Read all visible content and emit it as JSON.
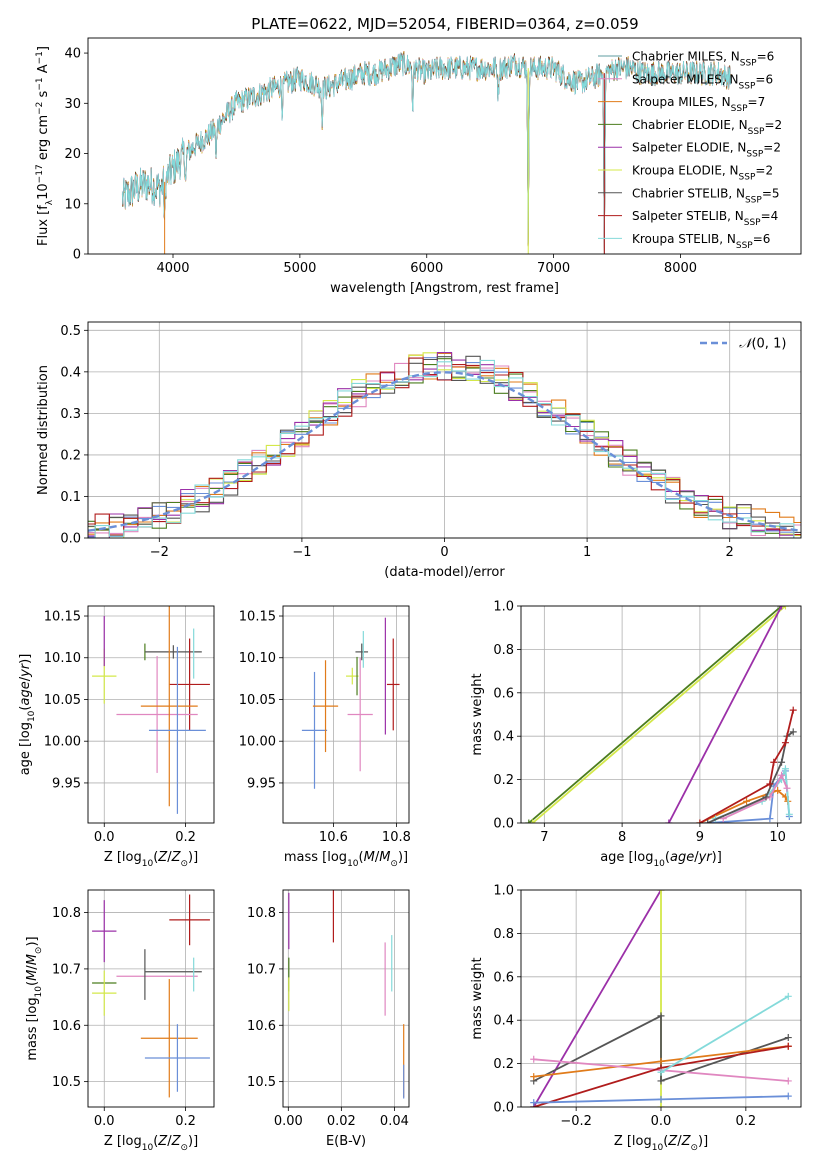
{
  "figure_title": "PLATE=0622, MJD=52054, FIBERID=0364, z=0.059",
  "colors": {
    "Chabrier MILES": "#5f9ea0",
    "Salpeter MILES": "#e087c0",
    "Kroupa MILES": "#e07b1a",
    "Chabrier ELODIE": "#4b7d1e",
    "Salpeter ELODIE": "#9b30a8",
    "Kroupa ELODIE": "#d4e84a",
    "Chabrier STELIB": "#555555",
    "Salpeter STELIB": "#b01c1c",
    "Kroupa STELIB": "#84dada",
    "Blue": "#6a8fd8"
  },
  "chart_data": [
    {
      "id": "spectrum",
      "type": "line",
      "xlabel": "wavelength [Angstrom, rest frame]",
      "ylabel": "Flux [f_λ 10^-17 erg cm^-2 s^-1 A^-1]",
      "xlim": [
        3330,
        8950
      ],
      "ylim": [
        0,
        43
      ],
      "xticks": [
        4000,
        5000,
        6000,
        7000,
        8000
      ],
      "yticks": [
        0,
        10,
        20,
        30,
        40
      ],
      "grid": false,
      "legend_position": "right",
      "legend": [
        "Chabrier MILES, N_SSP=6",
        "Salpeter MILES, N_SSP=6",
        "Kroupa MILES, N_SSP=7",
        "Chabrier ELODIE, N_SSP=2",
        "Salpeter ELODIE, N_SSP=2",
        "Kroupa ELODIE, N_SSP=2",
        "Chabrier STELIB, N_SSP=5",
        "Salpeter STELIB, N_SSP=4",
        "Kroupa STELIB, N_SSP=6"
      ],
      "continuum": [
        [
          3600,
          11
        ],
        [
          3700,
          13
        ],
        [
          3800,
          14
        ],
        [
          3900,
          13
        ],
        [
          4000,
          17
        ],
        [
          4100,
          20
        ],
        [
          4200,
          22
        ],
        [
          4300,
          24
        ],
        [
          4400,
          27
        ],
        [
          4500,
          30
        ],
        [
          4600,
          31
        ],
        [
          4700,
          32
        ],
        [
          4800,
          33
        ],
        [
          4900,
          34
        ],
        [
          5000,
          35
        ],
        [
          5100,
          34
        ],
        [
          5200,
          33
        ],
        [
          5300,
          34
        ],
        [
          5400,
          35
        ],
        [
          5500,
          36
        ],
        [
          5600,
          36
        ],
        [
          5700,
          37
        ],
        [
          5800,
          38
        ],
        [
          5900,
          37
        ],
        [
          6000,
          36
        ],
        [
          6100,
          37
        ],
        [
          6200,
          37
        ],
        [
          6300,
          37
        ],
        [
          6400,
          37
        ],
        [
          6500,
          37
        ],
        [
          6600,
          37
        ],
        [
          6700,
          38
        ],
        [
          6800,
          37
        ],
        [
          6900,
          37
        ],
        [
          7000,
          37
        ],
        [
          7100,
          35
        ],
        [
          7200,
          34
        ],
        [
          7300,
          35
        ],
        [
          7400,
          36
        ],
        [
          7500,
          37
        ],
        [
          7600,
          37
        ],
        [
          7700,
          36
        ],
        [
          7800,
          36
        ],
        [
          7900,
          36
        ],
        [
          8000,
          36
        ],
        [
          8100,
          36
        ],
        [
          8200,
          36
        ],
        [
          8300,
          36
        ],
        [
          8400,
          35
        ]
      ],
      "absorption_lines": [
        [
          3934,
          9
        ],
        [
          4101,
          6
        ],
        [
          4340,
          6
        ],
        [
          4861,
          5
        ],
        [
          5175,
          7
        ],
        [
          5890,
          9
        ],
        [
          6563,
          6
        ],
        [
          6800,
          37
        ],
        [
          7400,
          36
        ]
      ]
    },
    {
      "id": "residuals",
      "type": "line",
      "xlabel": "(data-model)/error",
      "ylabel": "Normed distribution",
      "xlim": [
        -2.5,
        2.5
      ],
      "ylim": [
        0,
        0.52
      ],
      "xticks": [
        -2,
        -1,
        0,
        1,
        2
      ],
      "yticks": [
        0.0,
        0.1,
        0.2,
        0.3,
        0.4,
        0.5
      ],
      "grid": true,
      "legend_position": "upper-right",
      "legend": [
        "𝒩(0, 1)"
      ],
      "bin_width": 0.1
    },
    {
      "id": "age_vs_Z",
      "type": "scatter",
      "xlabel": "Z [log10(Z/Z⊙)]",
      "ylabel": "age  [log10(age/yr)]",
      "xlim": [
        -0.04,
        0.27
      ],
      "ylim": [
        9.902,
        10.162
      ],
      "xticks": [
        0.0,
        0.2
      ],
      "yticks": [
        9.95,
        10.0,
        10.05,
        10.1,
        10.15
      ],
      "grid": true,
      "points": [
        {
          "x": 0.0,
          "y": 10.078,
          "xe": 0.03,
          "ye": 0.033,
          "c": "Kroupa ELODIE"
        },
        {
          "x": 0.0,
          "y": 10.12,
          "xe": 0.0,
          "ye": 0.03,
          "c": "Salpeter ELODIE"
        },
        {
          "x": 0.1,
          "y": 10.107,
          "xe": 0.0,
          "ye": 0.01,
          "c": "Chabrier ELODIE"
        },
        {
          "x": 0.17,
          "y": 10.107,
          "xe": 0.07,
          "ye": 0.008,
          "c": "Chabrier STELIB"
        },
        {
          "x": 0.22,
          "y": 10.105,
          "xe": 0.0,
          "ye": 0.03,
          "c": "Kroupa STELIB"
        },
        {
          "x": 0.21,
          "y": 10.068,
          "xe": 0.05,
          "ye": 0.055,
          "c": "Salpeter STELIB"
        },
        {
          "x": 0.13,
          "y": 10.032,
          "xe": 0.1,
          "ye": 0.07,
          "c": "Salpeter MILES"
        },
        {
          "x": 0.16,
          "y": 10.042,
          "xe": 0.07,
          "ye": 0.12,
          "c": "Kroupa MILES"
        },
        {
          "x": 0.18,
          "y": 10.013,
          "xe": 0.07,
          "ye": 0.1,
          "c": "Blue"
        }
      ]
    },
    {
      "id": "age_vs_mass",
      "type": "scatter",
      "xlabel": "mass [log10(M/M⊙)]",
      "ylabel": "",
      "xlim": [
        10.44,
        10.84
      ],
      "ylim": [
        9.902,
        10.162
      ],
      "xticks": [
        10.6,
        10.8
      ],
      "yticks": [
        9.95,
        10.0,
        10.05,
        10.1,
        10.15
      ],
      "grid": true,
      "points": [
        {
          "x": 10.54,
          "y": 10.013,
          "xe": 0.04,
          "ye": 0.07,
          "c": "Blue"
        },
        {
          "x": 10.575,
          "y": 10.042,
          "xe": 0.04,
          "ye": 0.055,
          "c": "Kroupa MILES"
        },
        {
          "x": 10.66,
          "y": 10.078,
          "xe": 0.02,
          "ye": 0.01,
          "c": "Kroupa ELODIE"
        },
        {
          "x": 10.675,
          "y": 10.078,
          "xe": 0.0,
          "ye": 0.023,
          "c": "Chabrier ELODIE"
        },
        {
          "x": 10.685,
          "y": 10.032,
          "xe": 0.04,
          "ye": 0.068,
          "c": "Salpeter MILES"
        },
        {
          "x": 10.69,
          "y": 10.107,
          "xe": 0.02,
          "ye": 0.01,
          "c": "Chabrier STELIB"
        },
        {
          "x": 10.695,
          "y": 10.11,
          "xe": 0.0,
          "ye": 0.022,
          "c": "Kroupa STELIB"
        },
        {
          "x": 10.765,
          "y": 10.078,
          "xe": 0.0,
          "ye": 0.07,
          "c": "Salpeter ELODIE"
        },
        {
          "x": 10.79,
          "y": 10.068,
          "xe": 0.02,
          "ye": 0.055,
          "c": "Salpeter STELIB"
        }
      ]
    },
    {
      "id": "mass_weight_vs_age",
      "type": "line",
      "xlabel": "age  [log10(age/yr)]",
      "ylabel": "mass weight",
      "xlim": [
        6.7,
        10.3
      ],
      "ylim": [
        0,
        1.0
      ],
      "xticks": [
        7,
        8,
        9,
        10
      ],
      "yticks": [
        0.0,
        0.2,
        0.4,
        0.6,
        0.8,
        1.0
      ],
      "grid": true,
      "series": [
        {
          "c": "Chabrier ELODIE",
          "x": [
            6.8,
            10.05
          ],
          "y": [
            0.0,
            1.0
          ]
        },
        {
          "c": "Kroupa ELODIE",
          "x": [
            6.85,
            10.1
          ],
          "y": [
            0.0,
            1.0
          ]
        },
        {
          "c": "Salpeter ELODIE",
          "x": [
            8.6,
            10.05
          ],
          "y": [
            0.0,
            1.0
          ]
        },
        {
          "c": "Blue",
          "x": [
            9.1,
            9.9,
            9.95,
            10.1,
            10.15
          ],
          "y": [
            0.0,
            0.02,
            0.17,
            0.24,
            0.03
          ]
        },
        {
          "c": "Kroupa MILES",
          "x": [
            9.0,
            9.6,
            10.0,
            10.1,
            10.13
          ],
          "y": [
            0.0,
            0.1,
            0.15,
            0.12,
            0.1
          ]
        },
        {
          "c": "Kroupa STELIB",
          "x": [
            9.2,
            9.8,
            10.05,
            10.1,
            10.15
          ],
          "y": [
            0.02,
            0.1,
            0.2,
            0.25,
            0.04
          ]
        },
        {
          "c": "Salpeter MILES",
          "x": [
            9.3,
            9.9,
            10.05,
            10.12
          ],
          "y": [
            0.02,
            0.12,
            0.22,
            0.16
          ]
        },
        {
          "c": "Chabrier STELIB",
          "x": [
            9.1,
            9.85,
            10.05,
            10.12,
            10.2
          ],
          "y": [
            0.0,
            0.12,
            0.28,
            0.4,
            0.42
          ]
        },
        {
          "c": "Salpeter STELIB",
          "x": [
            9.0,
            9.9,
            9.95,
            10.1,
            10.2
          ],
          "y": [
            0.0,
            0.18,
            0.28,
            0.37,
            0.52
          ]
        }
      ]
    },
    {
      "id": "mass_vs_Z",
      "type": "scatter",
      "xlabel": "Z [log10(Z/Z⊙)]",
      "ylabel": "mass [log10(M/M⊙)]",
      "xlim": [
        -0.04,
        0.27
      ],
      "ylim": [
        10.455,
        10.84
      ],
      "xticks": [
        0.0,
        0.2
      ],
      "yticks": [
        10.5,
        10.6,
        10.7,
        10.8
      ],
      "grid": true,
      "points": [
        {
          "x": 0.0,
          "y": 10.767,
          "xe": 0.03,
          "ye": 0.055,
          "c": "Salpeter ELODIE"
        },
        {
          "x": 0.0,
          "y": 10.675,
          "xe": 0.03,
          "ye": 0.0,
          "c": "Chabrier ELODIE"
        },
        {
          "x": 0.0,
          "y": 10.657,
          "xe": 0.03,
          "ye": 0.04,
          "c": "Kroupa ELODIE"
        },
        {
          "x": 0.13,
          "y": 10.687,
          "xe": 0.1,
          "ye": 0.0,
          "c": "Salpeter MILES"
        },
        {
          "x": 0.17,
          "y": 10.695,
          "xe": 0.07,
          "ye": 0.0,
          "c": "Chabrier STELIB"
        },
        {
          "x": 0.1,
          "y": 10.69,
          "xe": 0.0,
          "ye": 0.045,
          "c": "Chabrier STELIB"
        },
        {
          "x": 0.22,
          "y": 10.69,
          "xe": 0.0,
          "ye": 0.03,
          "c": "Kroupa STELIB"
        },
        {
          "x": 0.21,
          "y": 10.787,
          "xe": 0.05,
          "ye": 0.045,
          "c": "Salpeter STELIB"
        },
        {
          "x": 0.16,
          "y": 10.577,
          "xe": 0.07,
          "ye": 0.105,
          "c": "Kroupa MILES"
        },
        {
          "x": 0.18,
          "y": 10.542,
          "xe": 0.08,
          "ye": 0.06,
          "c": "Blue"
        }
      ]
    },
    {
      "id": "mass_vs_EBV",
      "type": "scatter",
      "xlabel": "E(B-V)",
      "ylabel": "",
      "xlim": [
        -0.002,
        0.0455
      ],
      "ylim": [
        10.455,
        10.84
      ],
      "xticks": [
        0.0,
        0.02,
        0.04
      ],
      "yticks": [
        10.5,
        10.6,
        10.7,
        10.8
      ],
      "grid": true,
      "points": [
        {
          "x": 0.0002,
          "y": 10.785,
          "xe": 0.0,
          "ye": 0.05,
          "c": "Salpeter ELODIE"
        },
        {
          "x": 0.0002,
          "y": 10.69,
          "xe": 0.0,
          "ye": 0.03,
          "c": "Chabrier ELODIE"
        },
        {
          "x": 0.0002,
          "y": 10.655,
          "xe": 0.0,
          "ye": 0.03,
          "c": "Kroupa ELODIE"
        },
        {
          "x": 0.017,
          "y": 10.797,
          "xe": 0.0,
          "ye": 0.05,
          "c": "Salpeter STELIB"
        },
        {
          "x": 0.0365,
          "y": 10.682,
          "xe": 0.0,
          "ye": 0.065,
          "c": "Salpeter MILES"
        },
        {
          "x": 0.039,
          "y": 10.71,
          "xe": 0.0,
          "ye": 0.05,
          "c": "Kroupa STELIB"
        },
        {
          "x": 0.0435,
          "y": 10.537,
          "xe": 0.0,
          "ye": 0.065,
          "c": "Kroupa MILES"
        },
        {
          "x": 0.0435,
          "y": 10.5,
          "xe": 0.0,
          "ye": 0.03,
          "c": "Blue"
        }
      ]
    },
    {
      "id": "mass_weight_vs_Z",
      "type": "line",
      "xlabel": "Z [log10(Z/Z⊙)]",
      "ylabel": "mass weight",
      "xlim": [
        -0.33,
        0.33
      ],
      "ylim": [
        0,
        1.0
      ],
      "xticks": [
        -0.2,
        0.0,
        0.2
      ],
      "yticks": [
        0.0,
        0.2,
        0.4,
        0.6,
        0.8,
        1.0
      ],
      "grid": true,
      "series": [
        {
          "c": "Salpeter ELODIE",
          "x": [
            -0.3,
            0.0
          ],
          "y": [
            0.0,
            1.0
          ]
        },
        {
          "c": "Kroupa ELODIE",
          "x": [
            0.0,
            0.0
          ],
          "y": [
            0.0,
            1.0
          ]
        },
        {
          "c": "Chabrier STELIB",
          "x": [
            -0.3,
            0.0,
            0.0,
            0.3
          ],
          "y": [
            0.12,
            0.42,
            0.12,
            0.32
          ]
        },
        {
          "c": "Kroupa MILES",
          "x": [
            -0.3,
            0.0,
            0.3
          ],
          "y": [
            0.14,
            0.21,
            0.28
          ]
        },
        {
          "c": "Salpeter MILES",
          "x": [
            -0.3,
            0.3
          ],
          "y": [
            0.22,
            0.12
          ]
        },
        {
          "c": "Salpeter STELIB",
          "x": [
            -0.3,
            0.0,
            0.3
          ],
          "y": [
            0.0,
            0.18,
            0.28
          ]
        },
        {
          "c": "Kroupa STELIB",
          "x": [
            0.0,
            0.3
          ],
          "y": [
            0.16,
            0.51
          ]
        },
        {
          "c": "Blue",
          "x": [
            -0.3,
            0.0,
            0.3
          ],
          "y": [
            0.02,
            0.035,
            0.05
          ]
        }
      ]
    }
  ]
}
